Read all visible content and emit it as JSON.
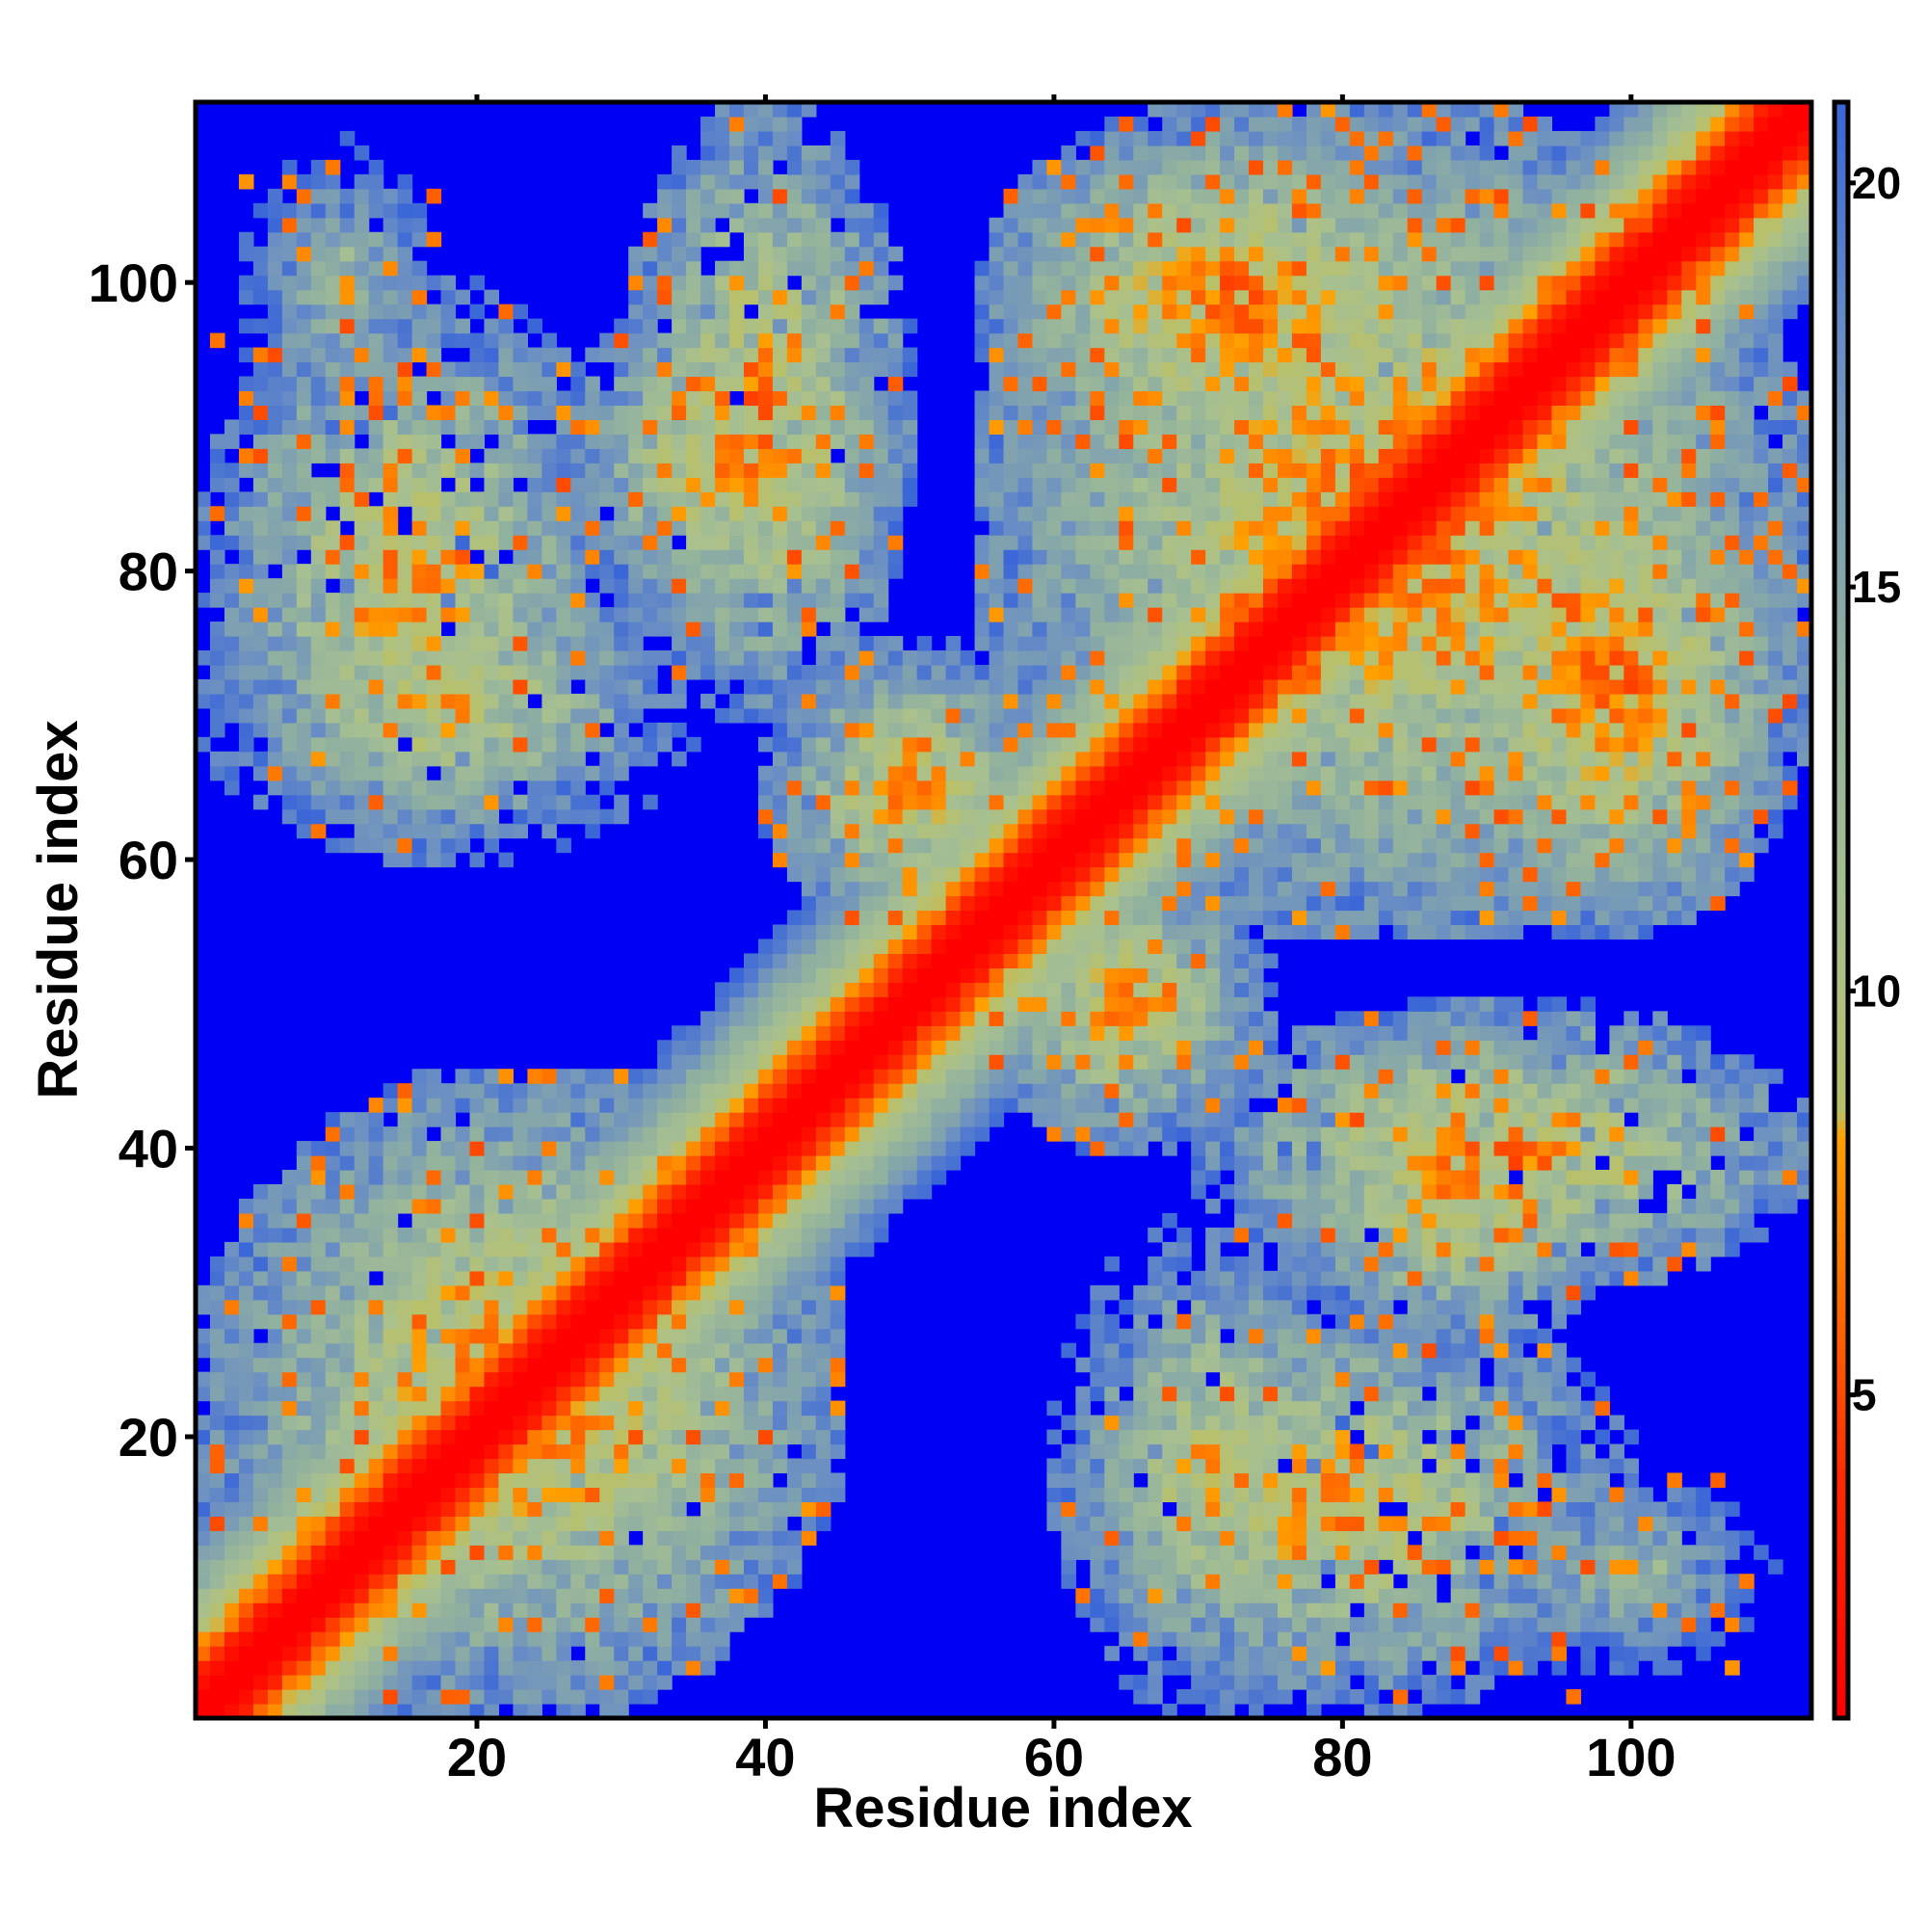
{
  "chart_data": {
    "type": "heatmap",
    "title": "",
    "xlabel": "Residue index",
    "ylabel": "Residue index",
    "xlim": [
      1,
      112
    ],
    "ylim": [
      1,
      112
    ],
    "x_ticks": [
      20,
      40,
      60,
      80,
      100
    ],
    "y_ticks": [
      20,
      40,
      60,
      80,
      100
    ],
    "colorbar": {
      "ticks": [
        5,
        10,
        15,
        20
      ],
      "range": [
        1,
        21
      ],
      "colors": [
        {
          "value": 1,
          "color": "#ff0000"
        },
        {
          "value": 4,
          "color": "#ff2a00"
        },
        {
          "value": 6,
          "color": "#ff6600"
        },
        {
          "value": 8.2,
          "color": "#ffa000"
        },
        {
          "value": 8.5,
          "color": "#b9c06a"
        },
        {
          "value": 11,
          "color": "#a8c090"
        },
        {
          "value": 14,
          "color": "#90b0a0"
        },
        {
          "value": 18,
          "color": "#6a8ec4"
        },
        {
          "value": 21,
          "color": "#3a66d8"
        }
      ],
      "background_color": "#0000f5"
    },
    "diagonal_values": [
      {
        "offset": 0,
        "value": 1
      },
      {
        "offset": 1,
        "value": 1
      },
      {
        "offset": 2,
        "value": 2
      },
      {
        "offset": 3,
        "value": 4
      },
      {
        "offset": 4,
        "value": 6
      },
      {
        "offset": 5,
        "value": 8
      },
      {
        "offset": 6,
        "value": 9.5
      },
      {
        "offset": 7,
        "value": 11
      },
      {
        "offset": 8,
        "value": 12.5
      },
      {
        "offset": 10,
        "value": 15
      },
      {
        "offset": 12,
        "value": 18
      },
      {
        "offset": 14,
        "value": 21
      }
    ],
    "contact_regions": [
      {
        "i_range": [
          1,
          45
        ],
        "j_range": [
          1,
          45
        ],
        "min_value": 6
      },
      {
        "i_range": [
          55,
          112
        ],
        "j_range": [
          55,
          112
        ],
        "min_value": 6
      },
      {
        "i_range": [
          1,
          35
        ],
        "j_range": [
          60,
          82
        ],
        "min_value": 8
      },
      {
        "i_range": [
          25,
          50
        ],
        "j_range": [
          75,
          100
        ],
        "min_value": 7
      },
      {
        "i_range": [
          60,
          100
        ],
        "j_range": [
          1,
          30
        ],
        "min_value": 7
      },
      {
        "i_range": [
          70,
          112
        ],
        "j_range": [
          30,
          50
        ],
        "min_value": 6
      },
      {
        "i_range": [
          1,
          20
        ],
        "j_range": [
          85,
          112
        ],
        "min_value": 13
      },
      {
        "i_range": [
          90,
          112
        ],
        "j_range": [
          1,
          20
        ],
        "min_value": 13
      },
      {
        "i_range": [
          55,
          90
        ],
        "j_range": [
          85,
          112
        ],
        "min_value": 6
      },
      {
        "i_range": [
          85,
          112
        ],
        "j_range": [
          55,
          90
        ],
        "min_value": 6
      },
      {
        "i_range": [
          40,
          60
        ],
        "j_range": [
          55,
          75
        ],
        "min_value": 7
      },
      {
        "i_range": [
          55,
          75
        ],
        "j_range": [
          40,
          60
        ],
        "min_value": 7
      }
    ]
  }
}
